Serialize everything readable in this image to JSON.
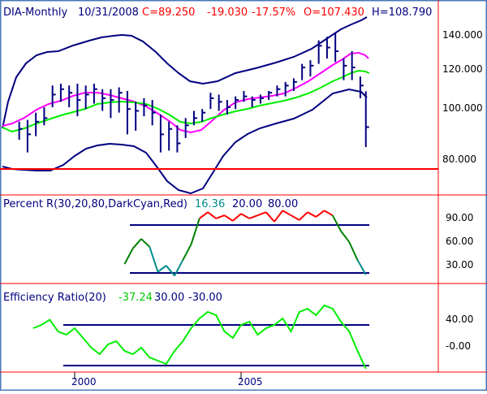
{
  "header": {
    "symbol": "DIA-Monthly",
    "date": "10/31/2008",
    "close": "C=89.250",
    "change": "-19.030",
    "change_pct": "-17.57%",
    "open": "O=107.430",
    "high": "H=108.790"
  },
  "colors": {
    "background": "#ffffff",
    "frame_border": "#4a7ab8",
    "text_navy": "#000080",
    "text_red": "#ff0000",
    "bars": "#000080",
    "bollinger": "#000080",
    "ma_magenta": "#ff00ff",
    "ma_green": "#00ee00",
    "support_line": "#ff0000",
    "pr_overbought": "#ff0000",
    "pr_normal": "#008000",
    "pr_oversold": "#008b8b",
    "er_line": "#00ee00",
    "level_line": "#000080"
  },
  "price_panel": {
    "ticks": [
      "140.000",
      "120.000",
      "100.000",
      "80.000"
    ]
  },
  "percent_r_panel": {
    "title": "Percent R(30,20,80,DarkCyan,Red)",
    "value": "16.36",
    "level_low": "20.00",
    "level_high": "80.00",
    "ticks": [
      "90.00",
      "60.00",
      "30.00"
    ]
  },
  "efficiency_panel": {
    "title": "Efficiency Ratio(20)",
    "value": "-37.24",
    "level_high": "30.00",
    "level_low": "-30.00",
    "ticks": [
      "40.00",
      "-0.00"
    ]
  },
  "x_axis": {
    "labels": [
      "2000",
      "2005"
    ]
  },
  "chart_data": [
    {
      "type": "line",
      "panel": "price",
      "x": [
        "1998-05",
        "1998-08",
        "1998-11",
        "1999-02",
        "1999-05",
        "1999-08",
        "1999-11",
        "2000-02",
        "2000-05",
        "2000-08",
        "2000-11",
        "2001-02",
        "2001-05",
        "2001-08",
        "2001-11",
        "2002-02",
        "2002-05",
        "2002-08",
        "2002-11",
        "2003-02",
        "2003-05",
        "2003-08",
        "2003-11",
        "2004-02",
        "2004-05",
        "2004-08",
        "2004-11",
        "2005-02",
        "2005-05",
        "2005-08",
        "2005-11",
        "2006-02",
        "2006-05",
        "2006-08",
        "2006-11",
        "2007-02",
        "2007-05",
        "2007-08",
        "2007-11",
        "2008-02",
        "2008-05",
        "2008-08",
        "2008-10"
      ],
      "series": [
        {
          "name": "Close",
          "values": [
            88,
            85,
            92,
            94,
            107,
            110,
            108,
            104,
            107,
            110,
            105,
            104,
            108,
            99,
            98,
            101,
            97,
            85,
            88,
            80,
            90,
            94,
            97,
            105,
            103,
            100,
            104,
            106,
            104,
            105,
            108,
            110,
            112,
            114,
            122,
            123,
            134,
            133,
            131,
            123,
            122,
            112,
            89
          ]
        },
        {
          "name": "High",
          "values": [
            92,
            93,
            97,
            100,
            112,
            113,
            112,
            113,
            112,
            113,
            110,
            110,
            111,
            109,
            103,
            105,
            104,
            96,
            92,
            90,
            94,
            98,
            99,
            108,
            107,
            104,
            106,
            109,
            106,
            107,
            109,
            112,
            114,
            116,
            124,
            126,
            137,
            139,
            141,
            127,
            131,
            117,
            108.8
          ]
        },
        {
          "name": "Low",
          "values": [
            82,
            75,
            84,
            90,
            100,
            103,
            100,
            95,
            99,
            102,
            98,
            94,
            97,
            85,
            87,
            95,
            90,
            75,
            76,
            75,
            83,
            90,
            92,
            99,
            98,
            96,
            99,
            103,
            100,
            102,
            104,
            106,
            106,
            109,
            115,
            117,
            124,
            127,
            125,
            115,
            115,
            105,
            78
          ]
        }
      ],
      "ylim": [
        70,
        150
      ]
    },
    {
      "type": "line",
      "panel": "percent_r",
      "x": [
        "2001-07",
        "2001-10",
        "2002-01",
        "2002-04",
        "2002-07",
        "2002-10",
        "2003-01",
        "2003-04",
        "2003-07",
        "2003-10",
        "2004-01",
        "2004-04",
        "2004-07",
        "2004-10",
        "2005-01",
        "2005-04",
        "2005-07",
        "2005-10",
        "2006-01",
        "2006-04",
        "2006-07",
        "2006-10",
        "2007-01",
        "2007-04",
        "2007-07",
        "2007-10",
        "2008-01",
        "2008-04",
        "2008-07",
        "2008-10"
      ],
      "series": [
        {
          "name": "Percent R",
          "values": [
            30,
            50,
            62,
            52,
            20,
            28,
            15,
            35,
            55,
            88,
            96,
            88,
            92,
            85,
            94,
            88,
            92,
            96,
            84,
            98,
            92,
            86,
            96,
            90,
            98,
            92,
            72,
            58,
            35,
            16.36
          ]
        }
      ],
      "levels": [
        20,
        80
      ],
      "ylim": [
        0,
        100
      ]
    },
    {
      "type": "line",
      "panel": "efficiency_ratio",
      "x": [
        "1998-10",
        "1999-01",
        "1999-04",
        "1999-07",
        "1999-10",
        "2000-01",
        "2000-04",
        "2000-07",
        "2000-10",
        "2001-01",
        "2001-04",
        "2001-07",
        "2001-10",
        "2002-01",
        "2002-04",
        "2002-07",
        "2002-10",
        "2003-01",
        "2003-04",
        "2003-07",
        "2003-10",
        "2004-01",
        "2004-04",
        "2004-07",
        "2004-10",
        "2005-01",
        "2005-04",
        "2005-07",
        "2005-10",
        "2006-01",
        "2006-04",
        "2006-07",
        "2006-10",
        "2007-01",
        "2007-04",
        "2007-07",
        "2007-10",
        "2008-01",
        "2008-04",
        "2008-07",
        "2008-10"
      ],
      "series": [
        {
          "name": "Efficiency Ratio",
          "values": [
            25,
            30,
            38,
            20,
            15,
            25,
            10,
            -5,
            -15,
            0,
            5,
            -10,
            -15,
            -5,
            -20,
            -25,
            -30,
            -10,
            5,
            25,
            40,
            50,
            45,
            20,
            10,
            30,
            35,
            15,
            25,
            30,
            40,
            20,
            50,
            55,
            45,
            60,
            55,
            35,
            20,
            -10,
            -37.24
          ]
        }
      ],
      "levels": [
        30,
        -30
      ],
      "ylim": [
        -40,
        60
      ]
    }
  ]
}
